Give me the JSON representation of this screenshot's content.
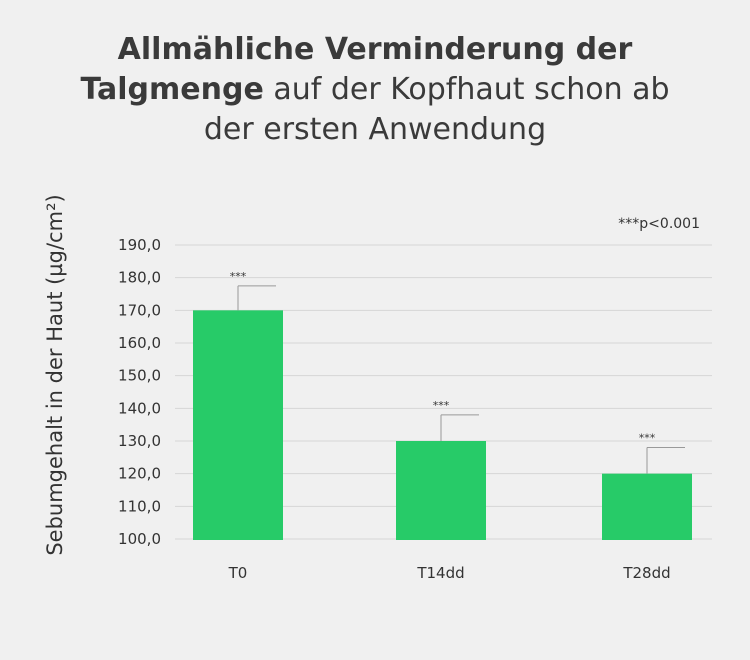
{
  "title": {
    "line1": "Allmähliche Verminderung der",
    "line2_bold": "Talgmenge",
    "line2_rest": " auf der Kopfhaut schon ab",
    "line3": "der ersten Anwendung"
  },
  "colors": {
    "bar": "#27cb68",
    "grid": "#d6d6d6",
    "background": "#f0f0f0"
  },
  "chart_data": {
    "type": "bar",
    "categories": [
      "T0",
      "T14dd",
      "T28dd"
    ],
    "values": [
      170,
      130,
      120
    ],
    "error_upper": [
      177.5,
      138,
      128
    ],
    "significance": [
      "***",
      "***",
      "***"
    ],
    "ylabel": "Sebumgehalt in der Haut (µg/cm²)",
    "xlabel": "",
    "ylim": [
      100,
      190
    ],
    "yticks": [
      "190,0",
      "180,0",
      "170,0",
      "160,0",
      "150,0",
      "140,0",
      "130,0",
      "120,0",
      "110,0",
      "100,0"
    ],
    "annotation": "***p<0.001",
    "grid": true
  }
}
